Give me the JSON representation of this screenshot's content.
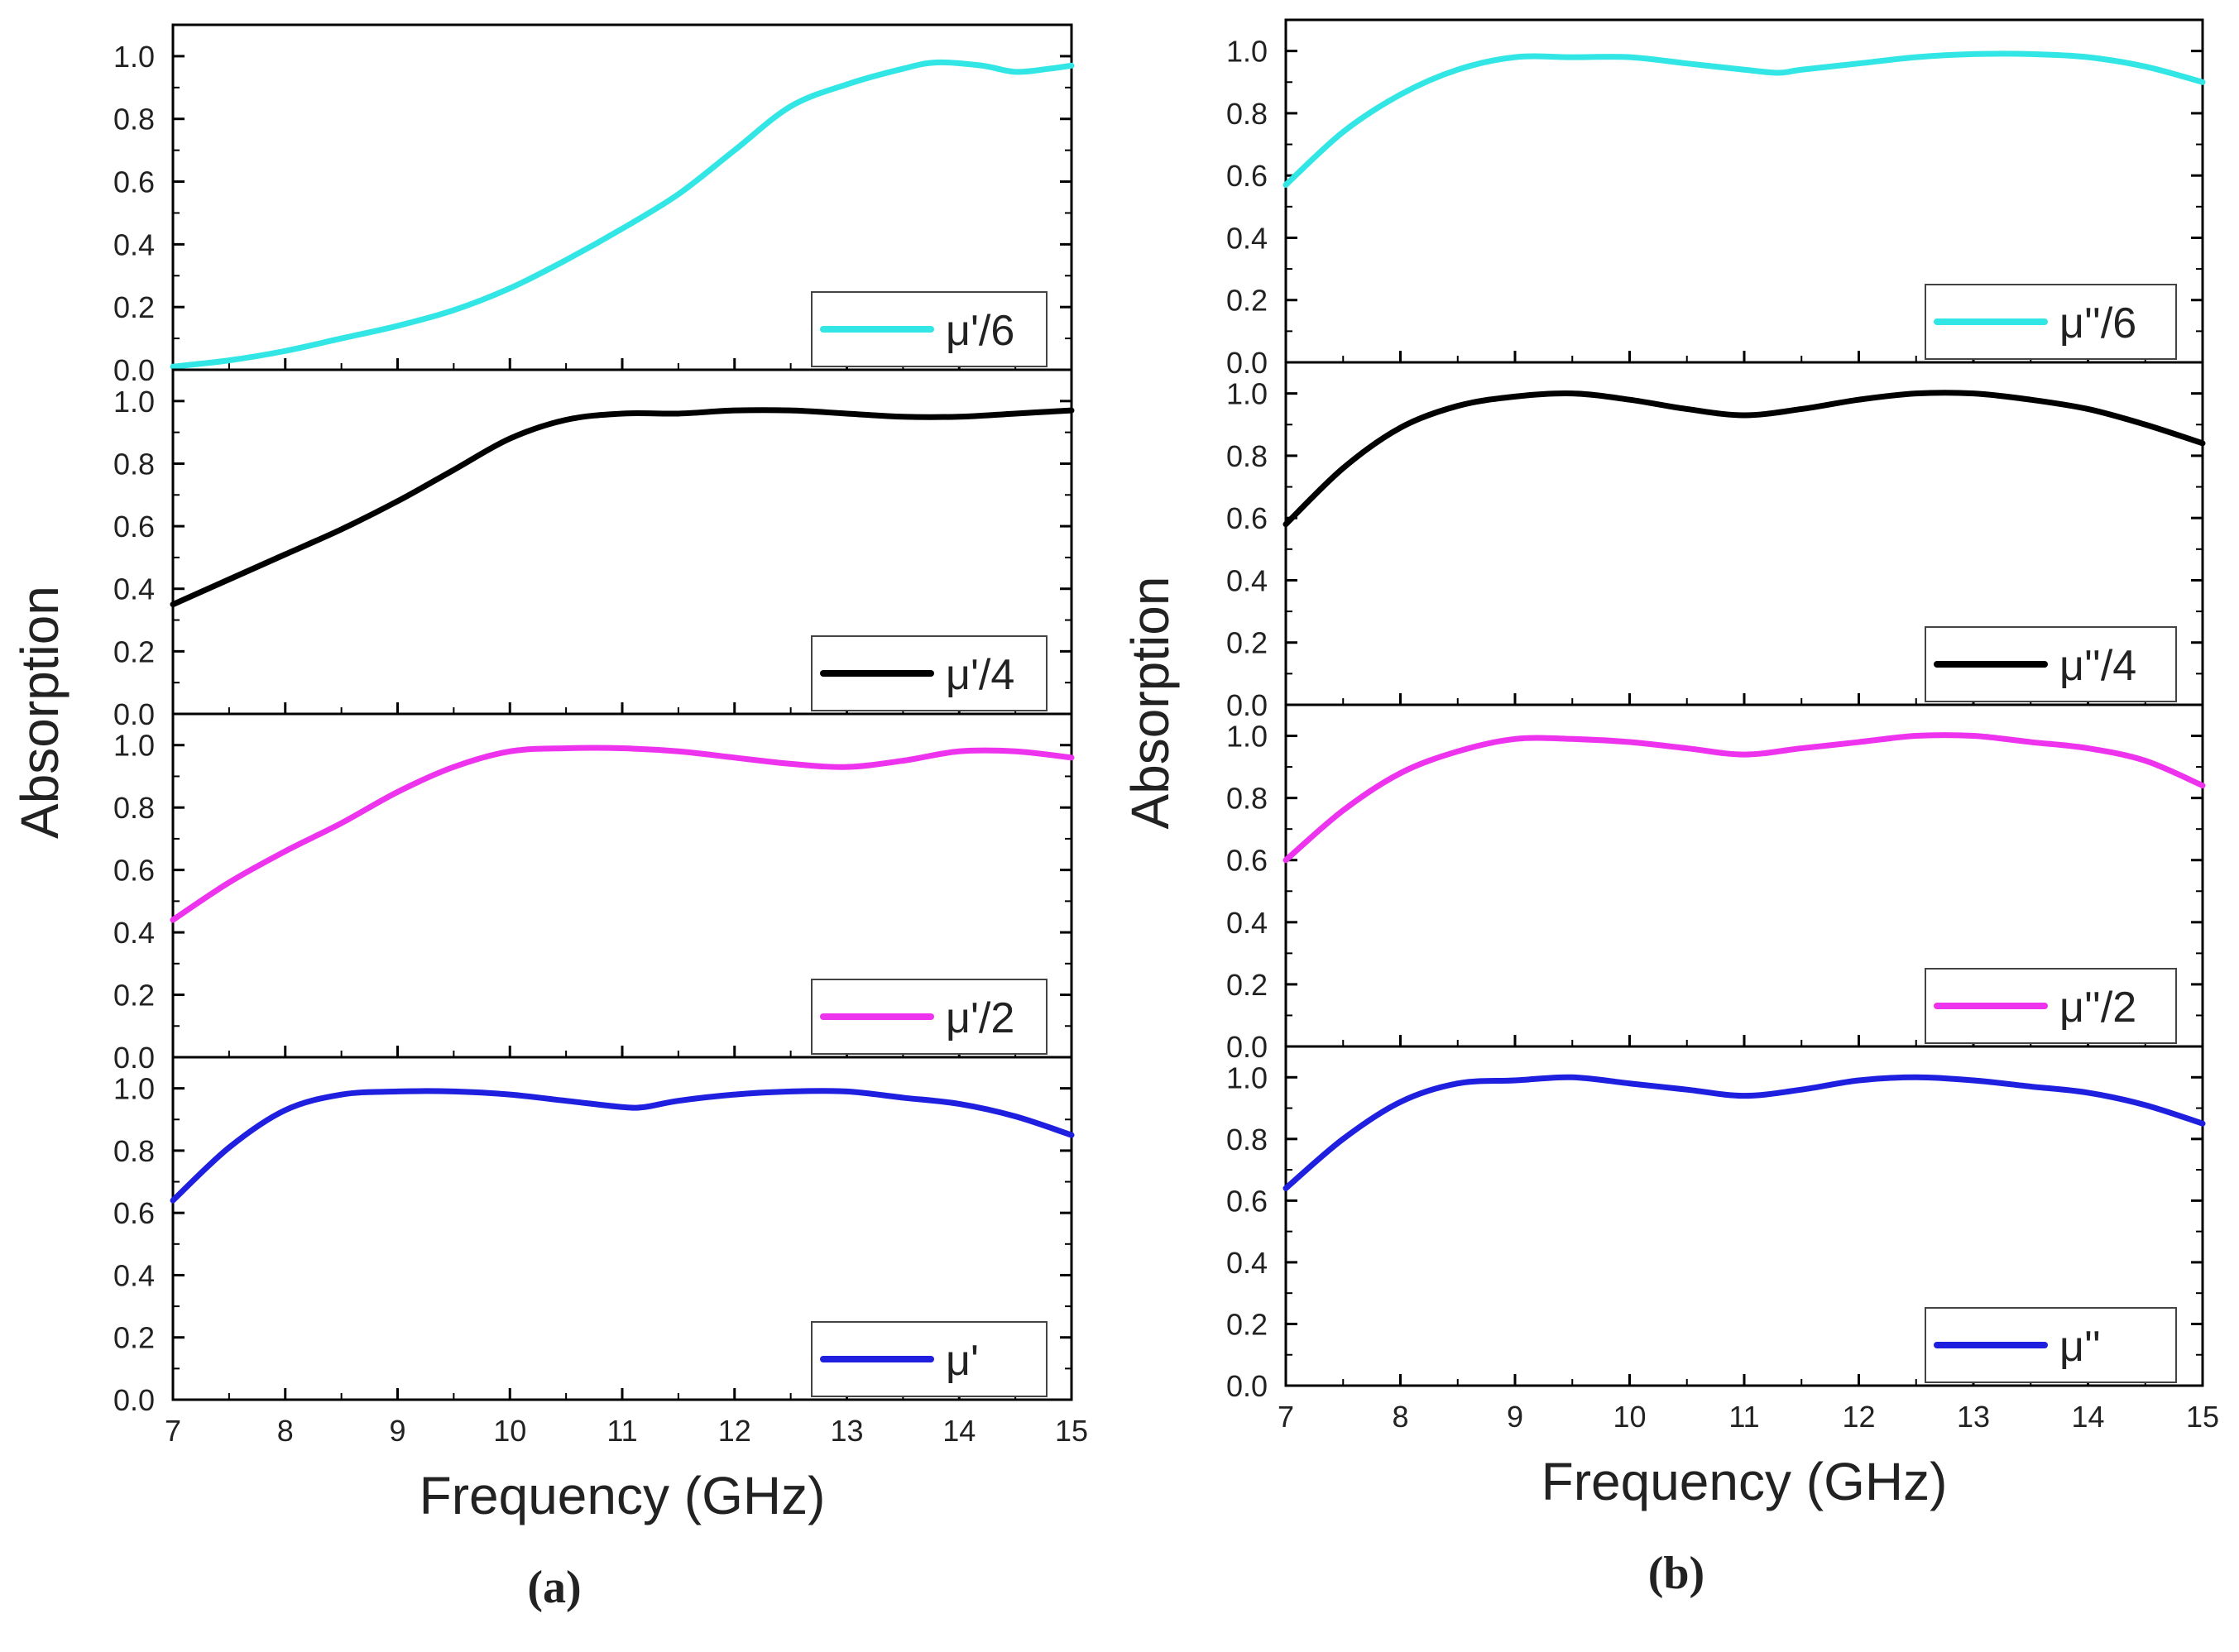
{
  "chart_data": [
    {
      "type": "line",
      "panel_label": "(a)",
      "xlabel": "Frequency (GHz)",
      "ylabel": "Absorption",
      "xlim": [
        7,
        15
      ],
      "ylim": [
        0,
        1.1
      ],
      "x_ticks": [
        "7",
        "8",
        "9",
        "10",
        "11",
        "12",
        "13",
        "14",
        "15"
      ],
      "y_ticks": [
        "0.0",
        "0.2",
        "0.4",
        "0.6",
        "0.8",
        "1.0"
      ],
      "legend_position": "bottom-right",
      "subplots": [
        {
          "series": [
            {
              "name": "μ'/6",
              "color": "#33E6E6",
              "x": [
                7,
                7.5,
                8,
                8.5,
                9,
                9.5,
                10,
                10.5,
                11,
                11.5,
                12,
                12.5,
                13,
                13.5,
                13.8,
                14.2,
                14.5,
                14.8,
                15
              ],
              "y": [
                0.01,
                0.03,
                0.06,
                0.1,
                0.14,
                0.19,
                0.26,
                0.35,
                0.45,
                0.56,
                0.7,
                0.84,
                0.91,
                0.96,
                0.98,
                0.97,
                0.95,
                0.96,
                0.97
              ]
            }
          ]
        },
        {
          "series": [
            {
              "name": "μ'/4",
              "color": "#000000",
              "x": [
                7,
                7.5,
                8,
                8.5,
                9,
                9.5,
                10,
                10.5,
                11,
                11.5,
                12,
                12.5,
                13,
                13.5,
                14,
                14.5,
                15
              ],
              "y": [
                0.35,
                0.43,
                0.51,
                0.59,
                0.68,
                0.78,
                0.88,
                0.94,
                0.96,
                0.96,
                0.97,
                0.97,
                0.96,
                0.95,
                0.95,
                0.96,
                0.97
              ]
            }
          ]
        },
        {
          "series": [
            {
              "name": "μ'/2",
              "color": "#EE33EE",
              "x": [
                7,
                7.5,
                8,
                8.5,
                9,
                9.5,
                10,
                10.5,
                11,
                11.5,
                12,
                12.5,
                13,
                13.5,
                14,
                14.5,
                15
              ],
              "y": [
                0.44,
                0.56,
                0.66,
                0.75,
                0.85,
                0.93,
                0.98,
                0.99,
                0.99,
                0.98,
                0.96,
                0.94,
                0.93,
                0.95,
                0.98,
                0.98,
                0.96
              ]
            }
          ]
        },
        {
          "series": [
            {
              "name": "μ'",
              "color": "#1F1FE0",
              "x": [
                7,
                7.5,
                8,
                8.5,
                9,
                9.5,
                10,
                10.5,
                11,
                11.2,
                11.5,
                12,
                12.5,
                13,
                13.5,
                14,
                14.5,
                15
              ],
              "y": [
                0.64,
                0.81,
                0.93,
                0.98,
                0.99,
                0.99,
                0.98,
                0.96,
                0.94,
                0.94,
                0.96,
                0.98,
                0.99,
                0.99,
                0.97,
                0.95,
                0.91,
                0.85
              ]
            }
          ]
        }
      ]
    },
    {
      "type": "line",
      "panel_label": "(b)",
      "xlabel": "Frequency (GHz)",
      "ylabel": "Absorption",
      "xlim": [
        7,
        15
      ],
      "ylim": [
        0,
        1.1
      ],
      "x_ticks": [
        "7",
        "8",
        "9",
        "10",
        "11",
        "12",
        "13",
        "14",
        "15"
      ],
      "y_ticks": [
        "0.0",
        "0.2",
        "0.4",
        "0.6",
        "0.8",
        "1.0"
      ],
      "legend_position": "bottom-right",
      "subplots": [
        {
          "series": [
            {
              "name": "μ''/6",
              "color": "#33E6E6",
              "x": [
                7,
                7.5,
                8,
                8.5,
                9,
                9.5,
                10,
                10.5,
                11,
                11.3,
                11.5,
                12,
                12.5,
                13,
                13.5,
                14,
                14.5,
                15
              ],
              "y": [
                0.57,
                0.74,
                0.86,
                0.94,
                0.98,
                0.98,
                0.98,
                0.96,
                0.94,
                0.93,
                0.94,
                0.96,
                0.98,
                0.99,
                0.99,
                0.98,
                0.95,
                0.9
              ]
            }
          ]
        },
        {
          "series": [
            {
              "name": "μ''/4",
              "color": "#000000",
              "x": [
                7,
                7.5,
                8,
                8.5,
                9,
                9.5,
                10,
                10.5,
                11,
                11.5,
                12,
                12.5,
                13,
                13.5,
                14,
                14.5,
                15
              ],
              "y": [
                0.58,
                0.76,
                0.89,
                0.96,
                0.99,
                1.0,
                0.98,
                0.95,
                0.93,
                0.95,
                0.98,
                1.0,
                1.0,
                0.98,
                0.95,
                0.9,
                0.84
              ]
            }
          ]
        },
        {
          "series": [
            {
              "name": "μ''/2",
              "color": "#EE33EE",
              "x": [
                7,
                7.5,
                8,
                8.5,
                9,
                9.5,
                10,
                10.5,
                11,
                11.5,
                12,
                12.5,
                13,
                13.5,
                14,
                14.5,
                15
              ],
              "y": [
                0.6,
                0.76,
                0.88,
                0.95,
                0.99,
                0.99,
                0.98,
                0.96,
                0.94,
                0.96,
                0.98,
                1.0,
                1.0,
                0.98,
                0.96,
                0.92,
                0.84
              ]
            }
          ]
        },
        {
          "series": [
            {
              "name": "μ''",
              "color": "#1F1FE0",
              "x": [
                7,
                7.5,
                8,
                8.5,
                9,
                9.5,
                10,
                10.5,
                11,
                11.5,
                12,
                12.5,
                13,
                13.5,
                14,
                14.5,
                15
              ],
              "y": [
                0.64,
                0.8,
                0.92,
                0.98,
                0.99,
                1.0,
                0.98,
                0.96,
                0.94,
                0.96,
                0.99,
                1.0,
                0.99,
                0.97,
                0.95,
                0.91,
                0.85
              ]
            }
          ]
        }
      ]
    }
  ]
}
